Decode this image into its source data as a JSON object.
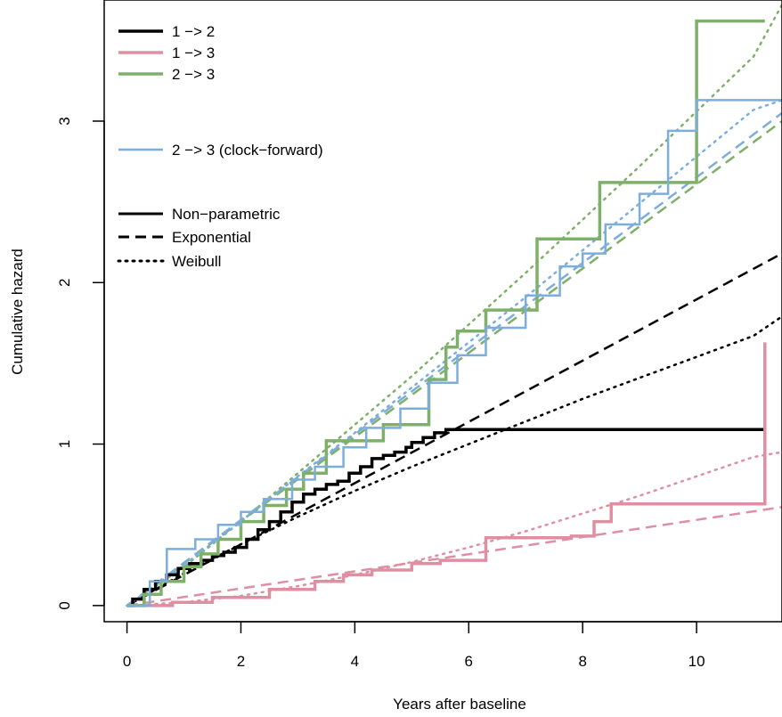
{
  "chart_data": {
    "type": "line",
    "xlabel": "Years after baseline",
    "ylabel": "Cumulative hazard",
    "xlim": [
      -0.4,
      11.5
    ],
    "ylim": [
      -0.1,
      3.75
    ],
    "x_ticks": [
      0,
      2,
      4,
      6,
      8,
      10
    ],
    "y_ticks": [
      0,
      1,
      2,
      3
    ],
    "grid": false,
    "legend_position": "top-left",
    "transition_legend": [
      {
        "label": "1 −> 2",
        "color": "#000000",
        "width": 3.5
      },
      {
        "label": "1 −> 3",
        "color": "#DF8FA2",
        "width": 3.5
      },
      {
        "label": "2 −> 3",
        "color": "#7FB069",
        "width": 3.5
      },
      {
        "label": "2 −> 3 (clock−forward)",
        "color": "#7DAEDB",
        "width": 2.5
      }
    ],
    "method_legend": [
      {
        "label": "Non−parametric",
        "dash": "solid"
      },
      {
        "label": "Exponential",
        "dash": "dashed"
      },
      {
        "label": "Weibull",
        "dash": "dotted"
      }
    ],
    "series": [
      {
        "name": "1 −> 2",
        "method": "Non−parametric",
        "color": "#000000",
        "width": 3.5,
        "dash": "solid",
        "step": true,
        "x": [
          0,
          0.1,
          0.3,
          0.5,
          0.7,
          0.9,
          1.1,
          1.3,
          1.5,
          1.7,
          1.9,
          2.1,
          2.3,
          2.5,
          2.7,
          2.9,
          3.1,
          3.3,
          3.5,
          3.7,
          3.9,
          4.1,
          4.3,
          4.5,
          4.7,
          4.9,
          5.0,
          5.2,
          5.4,
          5.6,
          11.2
        ],
        "y": [
          0,
          0.04,
          0.1,
          0.15,
          0.19,
          0.23,
          0.26,
          0.28,
          0.31,
          0.33,
          0.36,
          0.41,
          0.47,
          0.52,
          0.58,
          0.64,
          0.69,
          0.72,
          0.75,
          0.77,
          0.82,
          0.86,
          0.91,
          0.93,
          0.95,
          0.98,
          1.01,
          1.04,
          1.07,
          1.09,
          1.09
        ]
      },
      {
        "name": "1 −> 3",
        "method": "Non−parametric",
        "color": "#DF8FA2",
        "width": 3.5,
        "dash": "solid",
        "step": true,
        "x": [
          0,
          0.8,
          1.5,
          2.5,
          3.3,
          3.8,
          4.3,
          5.0,
          5.5,
          6.3,
          7.0,
          7.8,
          8.2,
          8.5,
          9.5,
          10.2,
          11.2
        ],
        "y": [
          0,
          0.02,
          0.05,
          0.1,
          0.15,
          0.19,
          0.22,
          0.26,
          0.28,
          0.42,
          0.42,
          0.43,
          0.52,
          0.63,
          0.63,
          0.63,
          1.63
        ]
      },
      {
        "name": "2 −> 3",
        "method": "Non−parametric",
        "color": "#7FB069",
        "width": 3.5,
        "dash": "solid",
        "step": true,
        "x": [
          0,
          0.3,
          0.6,
          1.0,
          1.3,
          1.6,
          2.0,
          2.4,
          2.8,
          3.1,
          3.5,
          4.0,
          4.5,
          5.0,
          5.3,
          5.6,
          5.8,
          6.3,
          6.8,
          7.2,
          8.3,
          10.0,
          11.2
        ],
        "y": [
          0,
          0.07,
          0.15,
          0.24,
          0.32,
          0.41,
          0.52,
          0.62,
          0.72,
          0.82,
          1.02,
          1.02,
          1.12,
          1.12,
          1.4,
          1.6,
          1.7,
          1.83,
          1.83,
          2.27,
          2.62,
          3.62,
          3.62
        ]
      },
      {
        "name": "2 −> 3 (clock−forward)",
        "method": "Non−parametric",
        "color": "#7DAEDB",
        "width": 2.5,
        "dash": "solid",
        "step": true,
        "x": [
          0,
          0.4,
          0.7,
          1.2,
          1.6,
          2.0,
          2.4,
          2.9,
          3.3,
          3.8,
          4.2,
          4.8,
          5.3,
          5.8,
          6.3,
          7.0,
          7.6,
          8.0,
          8.4,
          9.0,
          9.5,
          10.0,
          11.5
        ],
        "y": [
          0,
          0.15,
          0.35,
          0.41,
          0.5,
          0.58,
          0.66,
          0.78,
          0.86,
          0.98,
          1.1,
          1.22,
          1.38,
          1.55,
          1.72,
          1.92,
          2.1,
          2.18,
          2.36,
          2.55,
          2.94,
          3.13,
          3.13
        ]
      },
      {
        "name": "1 −> 2",
        "method": "Exponential",
        "color": "#000000",
        "width": 2.5,
        "dash": "dashed",
        "step": false,
        "x": [
          0,
          11.5
        ],
        "y": [
          0,
          2.18
        ]
      },
      {
        "name": "1 −> 2",
        "method": "Weibull",
        "color": "#000000",
        "width": 2.5,
        "dash": "dotted",
        "step": false,
        "x": [
          0,
          1,
          2,
          3,
          4,
          5,
          6,
          7,
          8,
          9,
          10,
          11,
          11.5
        ],
        "y": [
          0,
          0.2,
          0.38,
          0.55,
          0.71,
          0.86,
          1.0,
          1.14,
          1.28,
          1.41,
          1.54,
          1.67,
          1.79
        ]
      },
      {
        "name": "1 −> 3",
        "method": "Exponential",
        "color": "#DF8FA2",
        "width": 2.5,
        "dash": "dashed",
        "step": false,
        "x": [
          0,
          11.5
        ],
        "y": [
          0,
          0.61
        ]
      },
      {
        "name": "1 −> 3",
        "method": "Weibull",
        "color": "#DF8FA2",
        "width": 2.5,
        "dash": "dotted",
        "step": false,
        "x": [
          0,
          1,
          2,
          3,
          4,
          5,
          6,
          7,
          8,
          9,
          10,
          11,
          11.5
        ],
        "y": [
          0,
          0.02,
          0.06,
          0.12,
          0.19,
          0.27,
          0.36,
          0.46,
          0.57,
          0.68,
          0.8,
          0.92,
          0.95
        ]
      },
      {
        "name": "2 −> 3",
        "method": "Exponential",
        "color": "#7FB069",
        "width": 2.5,
        "dash": "dashed",
        "step": false,
        "x": [
          0,
          11.5
        ],
        "y": [
          0,
          3.0
        ]
      },
      {
        "name": "2 −> 3",
        "method": "Weibull",
        "color": "#7FB069",
        "width": 2.5,
        "dash": "dotted",
        "step": false,
        "x": [
          0,
          1,
          2,
          3,
          4,
          5,
          6,
          7,
          8,
          9,
          10,
          11,
          11.5
        ],
        "y": [
          0,
          0.24,
          0.52,
          0.82,
          1.12,
          1.42,
          1.74,
          2.06,
          2.39,
          2.72,
          3.06,
          3.4,
          3.72
        ]
      },
      {
        "name": "2 −> 3 (clock−forward)",
        "method": "Exponential",
        "color": "#7DAEDB",
        "width": 2.5,
        "dash": "dashed",
        "step": false,
        "x": [
          0,
          11.5
        ],
        "y": [
          0,
          3.05
        ]
      },
      {
        "name": "2 −> 3 (clock−forward)",
        "method": "Weibull",
        "color": "#7DAEDB",
        "width": 2.5,
        "dash": "dotted",
        "step": false,
        "x": [
          0,
          1,
          2,
          3,
          4,
          5,
          6,
          7,
          8,
          9,
          10,
          11,
          11.5
        ],
        "y": [
          0,
          0.25,
          0.52,
          0.8,
          1.07,
          1.35,
          1.63,
          1.91,
          2.2,
          2.49,
          2.78,
          3.07,
          3.13
        ]
      }
    ]
  }
}
